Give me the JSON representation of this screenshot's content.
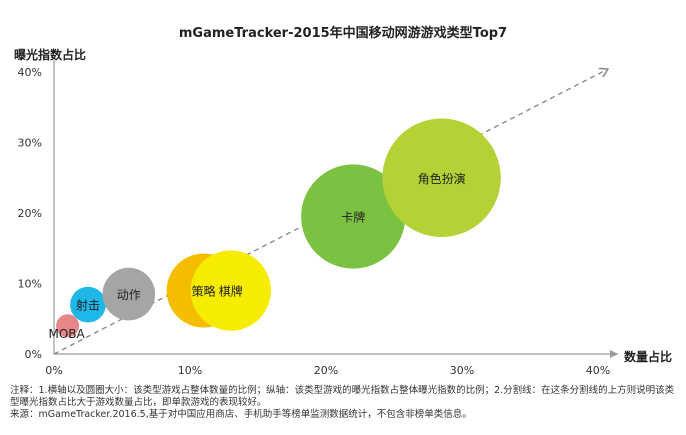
{
  "title": "mGameTracker-2015年中国移动网游游戏类型Top7",
  "chart_data": {
    "type": "bubble",
    "title": "mGameTracker-2015年中国移动网游游戏类型Top7",
    "xlabel": "数量占比",
    "ylabel": "曝光指数占比",
    "xlim": [
      0,
      40
    ],
    "ylim": [
      0,
      40
    ],
    "x_ticks": [
      "0%",
      "10%",
      "20%",
      "30%",
      "40%"
    ],
    "y_ticks": [
      "0%",
      "10%",
      "20%",
      "30%",
      "40%"
    ],
    "grid": false,
    "divider_line": "diagonal dashed line (y = x) with arrow",
    "points": [
      {
        "label": "MOBA",
        "x": 1.0,
        "y": 4.0,
        "color": "#e8878a"
      },
      {
        "label": "射击",
        "x": 2.5,
        "y": 7.0,
        "color": "#1fb6e8"
      },
      {
        "label": "动作",
        "x": 5.5,
        "y": 8.5,
        "color": "#a5a5a5"
      },
      {
        "label": "策略",
        "x": 11.0,
        "y": 9.0,
        "color": "#f5bd00"
      },
      {
        "label": "棋牌",
        "x": 13.0,
        "y": 9.0,
        "color": "#f5ec00"
      },
      {
        "label": "卡牌",
        "x": 22.0,
        "y": 19.5,
        "color": "#7cc242"
      },
      {
        "label": "角色扮演",
        "x": 28.5,
        "y": 25.0,
        "color": "#b4d236"
      }
    ]
  },
  "footnotes": {
    "note": "注释：1.横轴以及圆圈大小：该类型游戏占整体数量的比例；纵轴：该类型游戏的曝光指数占整体曝光指数的比例；2.分割线：在这条分割线的上方则说明该类型曝光指数占比大于游戏数量占比，即单款游戏的表现较好。",
    "source": "来源：mGameTracker.2016.5,基于对中国应用商店、手机助手等榜单监测数据统计，不包含非榜单类信息。"
  }
}
